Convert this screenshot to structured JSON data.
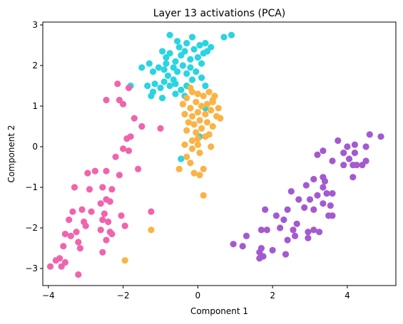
{
  "chart_data": {
    "type": "scatter",
    "title": "Layer 13 activations (PCA)",
    "xlabel": "Component 1",
    "ylabel": "Component 2",
    "xlim": [
      -4.15,
      5.3
    ],
    "ylim": [
      -3.42,
      3.07
    ],
    "xticks": [
      -4,
      -2,
      0,
      2,
      4
    ],
    "yticks": [
      -3,
      -2,
      -1,
      0,
      1,
      2,
      3
    ],
    "grid": false,
    "series": [
      {
        "color": "#2ad4e0",
        "points": [
          [
            -1.8,
            1.5
          ],
          [
            -0.75,
            2.75
          ],
          [
            -0.55,
            2.6
          ],
          [
            -0.5,
            2.45
          ],
          [
            -0.3,
            2.55
          ],
          [
            -0.15,
            2.7
          ],
          [
            0.05,
            2.5
          ],
          [
            0.15,
            2.3
          ],
          [
            0.2,
            2.55
          ],
          [
            0.35,
            2.45
          ],
          [
            0.7,
            2.7
          ],
          [
            0.9,
            2.75
          ],
          [
            -0.95,
            2.35
          ],
          [
            -0.85,
            2.2
          ],
          [
            -0.75,
            2.3
          ],
          [
            -0.6,
            2.1
          ],
          [
            -0.45,
            2.25
          ],
          [
            -0.35,
            2.35
          ],
          [
            -0.2,
            2.15
          ],
          [
            -0.1,
            2.4
          ],
          [
            0.0,
            2.2
          ],
          [
            0.1,
            2.05
          ],
          [
            0.25,
            2.35
          ],
          [
            -1.5,
            1.95
          ],
          [
            -1.3,
            2.05
          ],
          [
            -1.2,
            1.85
          ],
          [
            -1.05,
            1.95
          ],
          [
            -0.9,
            1.9
          ],
          [
            -0.8,
            1.75
          ],
          [
            -0.65,
            1.95
          ],
          [
            -0.55,
            1.85
          ],
          [
            -0.4,
            2.0
          ],
          [
            -0.3,
            1.8
          ],
          [
            -0.2,
            1.95
          ],
          [
            -0.05,
            1.85
          ],
          [
            0.1,
            1.7
          ],
          [
            0.2,
            1.5
          ],
          [
            -1.35,
            1.5
          ],
          [
            -1.2,
            1.35
          ],
          [
            -1.0,
            1.45
          ],
          [
            -0.9,
            1.6
          ],
          [
            -0.75,
            1.5
          ],
          [
            -0.6,
            1.55
          ],
          [
            -0.45,
            1.4
          ],
          [
            -0.3,
            1.5
          ],
          [
            -0.15,
            1.65
          ],
          [
            -0.35,
            1.25
          ],
          [
            -0.6,
            1.3
          ],
          [
            -1.25,
            1.25
          ],
          [
            -0.95,
            1.2
          ],
          [
            -0.65,
            1.65
          ],
          [
            -1.15,
            1.55
          ],
          [
            0.2,
            0.95
          ],
          [
            0.05,
            0.25
          ],
          [
            -0.45,
            -0.3
          ],
          [
            -0.85,
            2.05
          ]
        ]
      },
      {
        "color": "#fbb346",
        "points": [
          [
            -0.3,
            1.2
          ],
          [
            -0.15,
            1.35
          ],
          [
            0.0,
            1.3
          ],
          [
            0.15,
            1.25
          ],
          [
            0.3,
            1.35
          ],
          [
            0.45,
            1.25
          ],
          [
            -0.4,
            1.05
          ],
          [
            -0.2,
            0.95
          ],
          [
            -0.05,
            1.1
          ],
          [
            0.1,
            1.0
          ],
          [
            0.25,
            1.05
          ],
          [
            0.4,
            1.15
          ],
          [
            0.55,
            0.95
          ],
          [
            -0.35,
            0.8
          ],
          [
            -0.15,
            0.75
          ],
          [
            0.0,
            0.85
          ],
          [
            0.2,
            0.8
          ],
          [
            0.35,
            0.9
          ],
          [
            0.5,
            0.75
          ],
          [
            0.6,
            0.7
          ],
          [
            -0.25,
            0.6
          ],
          [
            -0.1,
            0.55
          ],
          [
            0.05,
            0.65
          ],
          [
            0.25,
            0.6
          ],
          [
            0.4,
            0.5
          ],
          [
            -0.3,
            0.4
          ],
          [
            -0.05,
            0.35
          ],
          [
            0.1,
            0.45
          ],
          [
            0.3,
            0.3
          ],
          [
            -0.15,
            0.15
          ],
          [
            0.0,
            0.2
          ],
          [
            0.2,
            0.25
          ],
          [
            -0.35,
            0.05
          ],
          [
            -0.15,
            -0.05
          ],
          [
            0.0,
            0.05
          ],
          [
            0.35,
            0.0
          ],
          [
            -0.3,
            -0.25
          ],
          [
            0.05,
            -0.15
          ],
          [
            -0.2,
            -0.4
          ],
          [
            0.15,
            -0.55
          ],
          [
            -0.5,
            -0.55
          ],
          [
            -0.1,
            -0.65
          ],
          [
            0.05,
            -0.7
          ],
          [
            0.15,
            -1.2
          ],
          [
            -0.2,
            1.45
          ],
          [
            -1.25,
            -2.05
          ],
          [
            -1.95,
            -2.8
          ],
          [
            0.4,
            1.1
          ]
        ]
      },
      {
        "color": "#f064ad",
        "points": [
          [
            -2.15,
            1.55
          ],
          [
            -2.0,
            1.05
          ],
          [
            -2.1,
            1.15
          ],
          [
            -1.85,
            1.45
          ],
          [
            -2.45,
            1.15
          ],
          [
            -1.7,
            0.7
          ],
          [
            -1.5,
            0.5
          ],
          [
            -1.9,
            0.2
          ],
          [
            -1.8,
            0.25
          ],
          [
            -2.0,
            -0.05
          ],
          [
            -1.85,
            -0.1
          ],
          [
            -2.2,
            -0.25
          ],
          [
            -2.45,
            -0.6
          ],
          [
            -2.75,
            -0.6
          ],
          [
            -2.1,
            -0.7
          ],
          [
            -1.6,
            -0.55
          ],
          [
            -2.95,
            -0.65
          ],
          [
            -3.3,
            -1.0
          ],
          [
            -2.9,
            -1.05
          ],
          [
            -2.55,
            -1.0
          ],
          [
            -2.3,
            -1.05
          ],
          [
            -2.45,
            -1.3
          ],
          [
            -2.35,
            -1.35
          ],
          [
            -2.6,
            -1.4
          ],
          [
            -3.1,
            -1.55
          ],
          [
            -3.35,
            -1.6
          ],
          [
            -2.85,
            -1.6
          ],
          [
            -2.5,
            -1.65
          ],
          [
            -2.05,
            -1.7
          ],
          [
            -3.45,
            -1.8
          ],
          [
            -3.05,
            -1.85
          ],
          [
            -2.55,
            -1.8
          ],
          [
            -2.4,
            -1.85
          ],
          [
            -1.95,
            -1.95
          ],
          [
            -1.25,
            -1.6
          ],
          [
            -3.25,
            -2.1
          ],
          [
            -3.0,
            -1.95
          ],
          [
            -2.6,
            -2.05
          ],
          [
            -2.35,
            -2.1
          ],
          [
            -3.55,
            -2.15
          ],
          [
            -3.4,
            -2.2
          ],
          [
            -3.2,
            -2.35
          ],
          [
            -2.45,
            -2.3
          ],
          [
            -3.6,
            -2.45
          ],
          [
            -3.15,
            -2.5
          ],
          [
            -2.55,
            -2.6
          ],
          [
            -3.7,
            -2.75
          ],
          [
            -3.55,
            -2.85
          ],
          [
            -3.8,
            -2.8
          ],
          [
            -3.65,
            -2.95
          ],
          [
            -3.95,
            -2.95
          ],
          [
            -3.2,
            -3.15
          ],
          [
            -1.0,
            0.45
          ],
          [
            -2.3,
            -2.15
          ]
        ]
      },
      {
        "color": "#a35ad0",
        "points": [
          [
            4.6,
            0.3
          ],
          [
            4.9,
            0.25
          ],
          [
            4.5,
            0.0
          ],
          [
            4.2,
            0.05
          ],
          [
            4.0,
            0.0
          ],
          [
            3.75,
            0.15
          ],
          [
            3.9,
            -0.15
          ],
          [
            4.2,
            -0.15
          ],
          [
            3.35,
            -0.1
          ],
          [
            4.5,
            -0.35
          ],
          [
            4.4,
            -0.45
          ],
          [
            4.15,
            -0.45
          ],
          [
            4.05,
            -0.3
          ],
          [
            4.25,
            -0.45
          ],
          [
            3.2,
            -0.2
          ],
          [
            3.6,
            -0.35
          ],
          [
            3.9,
            -0.45
          ],
          [
            4.15,
            -0.75
          ],
          [
            3.35,
            -0.75
          ],
          [
            3.4,
            -0.85
          ],
          [
            3.1,
            -0.8
          ],
          [
            2.9,
            -0.95
          ],
          [
            3.35,
            -1.0
          ],
          [
            3.45,
            -1.15
          ],
          [
            3.6,
            -1.15
          ],
          [
            3.2,
            -1.2
          ],
          [
            2.5,
            -1.1
          ],
          [
            2.7,
            -1.3
          ],
          [
            3.0,
            -1.3
          ],
          [
            3.35,
            -1.4
          ],
          [
            3.55,
            -1.45
          ],
          [
            2.4,
            -1.55
          ],
          [
            2.85,
            -1.5
          ],
          [
            3.1,
            -1.55
          ],
          [
            3.5,
            -1.7
          ],
          [
            3.6,
            -1.7
          ],
          [
            1.8,
            -1.55
          ],
          [
            2.1,
            -1.7
          ],
          [
            2.3,
            -1.8
          ],
          [
            2.65,
            -1.9
          ],
          [
            3.1,
            -2.05
          ],
          [
            3.25,
            -2.1
          ],
          [
            1.7,
            -2.05
          ],
          [
            1.85,
            -2.05
          ],
          [
            2.2,
            -2.0
          ],
          [
            2.55,
            -2.05
          ],
          [
            2.6,
            -2.2
          ],
          [
            2.95,
            -2.25
          ],
          [
            1.3,
            -2.2
          ],
          [
            2.4,
            -2.3
          ],
          [
            1.7,
            -2.5
          ],
          [
            1.2,
            -2.45
          ],
          [
            0.95,
            -2.4
          ],
          [
            2.0,
            -2.55
          ],
          [
            2.35,
            -2.65
          ],
          [
            1.65,
            -2.75
          ],
          [
            1.75,
            -2.7
          ],
          [
            1.65,
            -2.6
          ],
          [
            2.95,
            -2.1
          ]
        ]
      }
    ]
  }
}
